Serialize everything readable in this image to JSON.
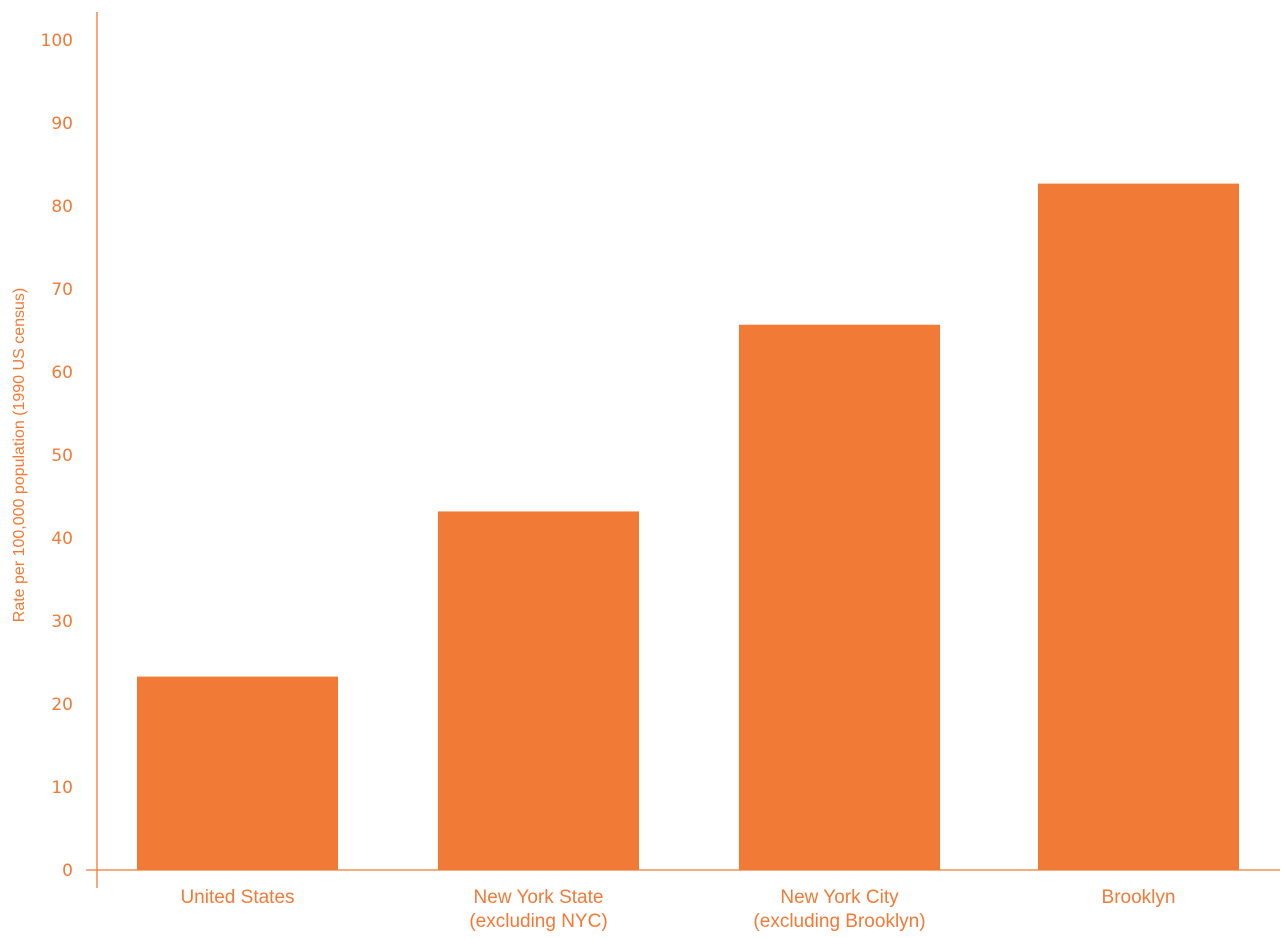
{
  "chart_data": {
    "type": "bar",
    "categories": [
      [
        "United States"
      ],
      [
        "New York State",
        "(excluding NYC)"
      ],
      [
        "New York City",
        "(excluding Brooklyn)"
      ],
      [
        "Brooklyn"
      ]
    ],
    "values": [
      23.3,
      43.2,
      65.7,
      82.7
    ],
    "title": "",
    "xlabel": "",
    "ylabel": "Rate per 100,000 population (1990 US census)",
    "ylim": [
      0,
      100
    ],
    "yticks": [
      "0",
      "10",
      "20",
      "30",
      "40",
      "50",
      "60",
      "70",
      "80",
      "90",
      "100"
    ],
    "grid": false,
    "legend": "none",
    "colors": {
      "bar": "#f27a37",
      "axis": "#f27a37",
      "text": "#f27a37"
    }
  }
}
